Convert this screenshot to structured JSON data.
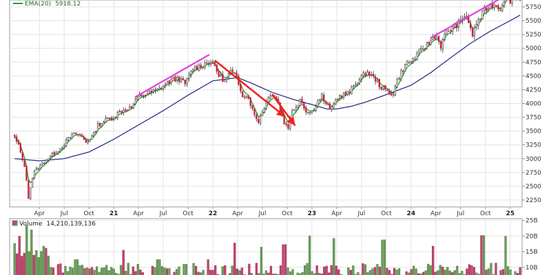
{
  "chart_data": [
    {
      "type": "candlestick",
      "panel": "price",
      "legend": {
        "ema_label": "EMA(20)",
        "ema_value": "5918.12"
      },
      "y_ticks": [
        2250,
        2500,
        2750,
        3000,
        3250,
        3500,
        3750,
        4000,
        4250,
        4500,
        4750,
        5000,
        5250,
        5500,
        5750
      ],
      "ylim": [
        2150,
        5850
      ],
      "x_ticks": [
        {
          "t": 0.25,
          "label": "Apr",
          "year": false
        },
        {
          "t": 0.5,
          "label": "Jul",
          "year": false
        },
        {
          "t": 0.75,
          "label": "Oct",
          "year": false
        },
        {
          "t": 1.0,
          "label": "21",
          "year": true
        },
        {
          "t": 1.25,
          "label": "Apr",
          "year": false
        },
        {
          "t": 1.5,
          "label": "Jul",
          "year": false
        },
        {
          "t": 1.75,
          "label": "Oct",
          "year": false
        },
        {
          "t": 2.0,
          "label": "22",
          "year": true
        },
        {
          "t": 2.25,
          "label": "Apr",
          "year": false
        },
        {
          "t": 2.5,
          "label": "Jul",
          "year": false
        },
        {
          "t": 2.75,
          "label": "Oct",
          "year": false
        },
        {
          "t": 3.0,
          "label": "23",
          "year": true
        },
        {
          "t": 3.25,
          "label": "Apr",
          "year": false
        },
        {
          "t": 3.5,
          "label": "Jul",
          "year": false
        },
        {
          "t": 3.75,
          "label": "Oct",
          "year": false
        },
        {
          "t": 4.0,
          "label": "24",
          "year": true
        },
        {
          "t": 4.25,
          "label": "Apr",
          "year": false
        },
        {
          "t": 4.5,
          "label": "Jul",
          "year": false
        },
        {
          "t": 4.75,
          "label": "Oct",
          "year": false
        },
        {
          "t": 5.0,
          "label": "25",
          "year": true
        }
      ],
      "price_path": [
        [
          0.0,
          3380
        ],
        [
          0.04,
          3230
        ],
        [
          0.08,
          3000
        ],
        [
          0.115,
          2700
        ],
        [
          0.14,
          2300
        ],
        [
          0.16,
          2480
        ],
        [
          0.19,
          2750
        ],
        [
          0.25,
          2850
        ],
        [
          0.31,
          2970
        ],
        [
          0.4,
          3100
        ],
        [
          0.47,
          3200
        ],
        [
          0.55,
          3380
        ],
        [
          0.62,
          3460
        ],
        [
          0.67,
          3410
        ],
        [
          0.72,
          3300
        ],
        [
          0.8,
          3440
        ],
        [
          0.84,
          3610
        ],
        [
          0.92,
          3700
        ],
        [
          1.0,
          3750
        ],
        [
          1.05,
          3840
        ],
        [
          1.1,
          3880
        ],
        [
          1.18,
          3930
        ],
        [
          1.25,
          4130
        ],
        [
          1.35,
          4180
        ],
        [
          1.45,
          4250
        ],
        [
          1.55,
          4390
        ],
        [
          1.65,
          4460
        ],
        [
          1.72,
          4360
        ],
        [
          1.8,
          4640
        ],
        [
          1.9,
          4700
        ],
        [
          1.97,
          4770
        ],
        [
          2.02,
          4680
        ],
        [
          2.06,
          4510
        ],
        [
          2.12,
          4410
        ],
        [
          2.18,
          4580
        ],
        [
          2.24,
          4470
        ],
        [
          2.3,
          4160
        ],
        [
          2.36,
          4120
        ],
        [
          2.41,
          3820
        ],
        [
          2.46,
          3680
        ],
        [
          2.52,
          3950
        ],
        [
          2.58,
          4180
        ],
        [
          2.63,
          4140
        ],
        [
          2.67,
          3950
        ],
        [
          2.72,
          3650
        ],
        [
          2.76,
          3580
        ],
        [
          2.8,
          3860
        ],
        [
          2.85,
          3970
        ],
        [
          2.88,
          4080
        ],
        [
          2.95,
          3840
        ],
        [
          3.0,
          3850
        ],
        [
          3.05,
          4020
        ],
        [
          3.1,
          4140
        ],
        [
          3.14,
          3970
        ],
        [
          3.2,
          3900
        ],
        [
          3.25,
          4100
        ],
        [
          3.31,
          4160
        ],
        [
          3.38,
          4200
        ],
        [
          3.44,
          4370
        ],
        [
          3.5,
          4480
        ],
        [
          3.56,
          4570
        ],
        [
          3.6,
          4500
        ],
        [
          3.64,
          4440
        ],
        [
          3.7,
          4290
        ],
        [
          3.77,
          4200
        ],
        [
          3.82,
          4180
        ],
        [
          3.85,
          4380
        ],
        [
          3.9,
          4560
        ],
        [
          3.95,
          4720
        ],
        [
          4.0,
          4760
        ],
        [
          4.06,
          4860
        ],
        [
          4.12,
          5000
        ],
        [
          4.18,
          5100
        ],
        [
          4.25,
          5250
        ],
        [
          4.3,
          5050
        ],
        [
          4.36,
          5300
        ],
        [
          4.44,
          5400
        ],
        [
          4.5,
          5480
        ],
        [
          4.55,
          5630
        ],
        [
          4.59,
          5430
        ],
        [
          4.61,
          5200
        ],
        [
          4.66,
          5450
        ],
        [
          4.72,
          5620
        ],
        [
          4.78,
          5760
        ],
        [
          4.84,
          5800
        ],
        [
          4.9,
          5720
        ],
        [
          4.95,
          5950
        ],
        [
          5.0,
          5880
        ],
        [
          5.05,
          5920
        ],
        [
          5.1,
          5980
        ]
      ],
      "sma_long_path": [
        [
          0.0,
          3000
        ],
        [
          0.25,
          2960
        ],
        [
          0.5,
          3000
        ],
        [
          0.75,
          3120
        ],
        [
          1.0,
          3350
        ],
        [
          1.25,
          3610
        ],
        [
          1.5,
          3870
        ],
        [
          1.75,
          4150
        ],
        [
          2.0,
          4410
        ],
        [
          2.25,
          4470
        ],
        [
          2.4,
          4360
        ],
        [
          2.6,
          4200
        ],
        [
          2.8,
          4080
        ],
        [
          3.0,
          3980
        ],
        [
          3.15,
          3900
        ],
        [
          3.25,
          3900
        ],
        [
          3.4,
          3950
        ],
        [
          3.55,
          4030
        ],
        [
          3.75,
          4160
        ],
        [
          4.0,
          4330
        ],
        [
          4.2,
          4560
        ],
        [
          4.4,
          4830
        ],
        [
          4.6,
          5090
        ],
        [
          4.8,
          5310
        ],
        [
          5.0,
          5500
        ],
        [
          5.1,
          5600
        ]
      ],
      "annotations": [
        {
          "kind": "trendline",
          "color": "#e040e0",
          "from": [
            1.22,
            4120
          ],
          "to": [
            1.96,
            4880
          ]
        },
        {
          "kind": "trendline",
          "color": "#e040e0",
          "from": [
            4.2,
            5190
          ],
          "to": [
            4.93,
            5930
          ]
        },
        {
          "kind": "arrow",
          "color": "#ee2222",
          "from": [
            2.02,
            4780
          ],
          "to": [
            2.73,
            3760
          ]
        },
        {
          "kind": "arrow",
          "color": "#ee2222",
          "from": [
            2.6,
            4160
          ],
          "to": [
            2.83,
            3600
          ]
        }
      ]
    },
    {
      "type": "bar",
      "panel": "volume",
      "legend": {
        "label": "Volume",
        "value": "14,210,139,136"
      },
      "y_ticks": [
        {
          "v": 10,
          "label": "10B"
        },
        {
          "v": 15,
          "label": "15B"
        },
        {
          "v": 20,
          "label": "20B"
        },
        {
          "v": 25,
          "label": "25B"
        }
      ],
      "ylim": [
        5.8,
        25.6
      ],
      "spikes": [
        {
          "t": 0.05,
          "v": 20
        },
        {
          "t": 0.12,
          "v": 23.5
        },
        {
          "t": 0.18,
          "v": 22
        },
        {
          "t": 0.62,
          "v": 12.5
        },
        {
          "t": 1.1,
          "v": 15.5
        },
        {
          "t": 1.45,
          "v": 12.5
        },
        {
          "t": 1.96,
          "v": 12.5
        },
        {
          "t": 2.22,
          "v": 17.8
        },
        {
          "t": 2.48,
          "v": 16.5
        },
        {
          "t": 2.72,
          "v": 17.3
        },
        {
          "t": 2.97,
          "v": 20.1
        },
        {
          "t": 3.22,
          "v": 19.3
        },
        {
          "t": 3.72,
          "v": 18.8
        },
        {
          "t": 4.22,
          "v": 16.8
        },
        {
          "t": 4.72,
          "v": 20.2
        },
        {
          "t": 4.96,
          "v": 20.0
        }
      ]
    }
  ],
  "colors": {
    "up": "#2e7d32",
    "down": "#d21f3c",
    "ema": "#22a122",
    "sma_long": "#2c2e86",
    "vol_up": "#6a9e5a",
    "vol_down": "#c2456e",
    "grid": "#e3e3e3"
  }
}
